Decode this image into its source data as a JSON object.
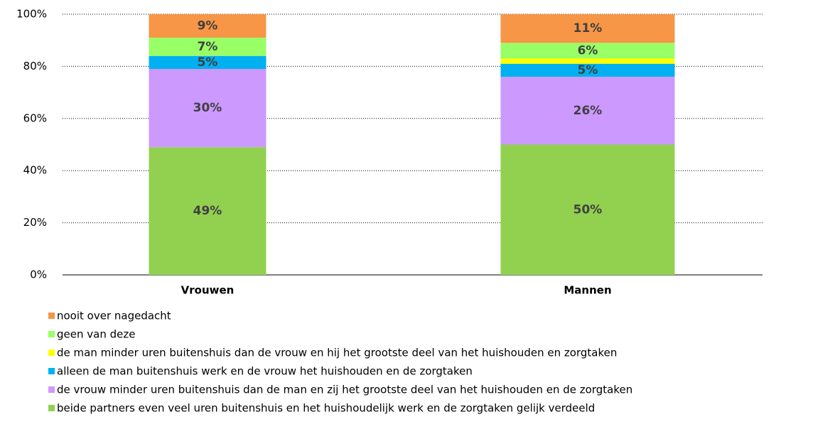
{
  "chart_data": {
    "type": "stacked-bar",
    "categories": [
      "Vrouwen",
      "Mannen"
    ],
    "series": [
      {
        "name": "beide partners even veel uren buitenshuis en het huishoudelijk werk en de zorgtaken gelijk verdeeld",
        "color": "#92d050",
        "values": [
          49,
          50
        ],
        "value_labels": [
          "49%",
          "50%"
        ]
      },
      {
        "name": "de vrouw minder uren buitenshuis dan de man en zij het grootste deel van het huishouden en de zorgtaken",
        "color": "#cc99ff",
        "values": [
          30,
          26
        ],
        "value_labels": [
          "30%",
          "26%"
        ]
      },
      {
        "name": "alleen de man buitenshuis werk en de vrouw het huishouden en de zorgtaken",
        "color": "#00b0f0",
        "values": [
          5,
          5
        ],
        "value_labels": [
          "5%",
          "5%"
        ]
      },
      {
        "name": "de man minder uren buitenshuis dan de vrouw en hij het grootste deel van het huishouden en zorgtaken",
        "color": "#ffff00",
        "values": [
          0,
          2
        ]
      },
      {
        "name": "geen van deze",
        "color": "#99ff66",
        "values": [
          7,
          6
        ],
        "value_labels": [
          "7%",
          "6%"
        ]
      },
      {
        "name": "nooit over nagedacht",
        "color": "#f79646",
        "values": [
          9,
          11
        ],
        "value_labels": [
          "9%",
          "11%"
        ]
      }
    ],
    "ylim": [
      0,
      100
    ],
    "yticks": [
      {
        "value": 0,
        "label": "0%"
      },
      {
        "value": 20,
        "label": "20%"
      },
      {
        "value": 40,
        "label": "40%"
      },
      {
        "value": 60,
        "label": "60%"
      },
      {
        "value": 80,
        "label": "80%"
      },
      {
        "value": 100,
        "label": "100%"
      }
    ],
    "grid": true
  }
}
